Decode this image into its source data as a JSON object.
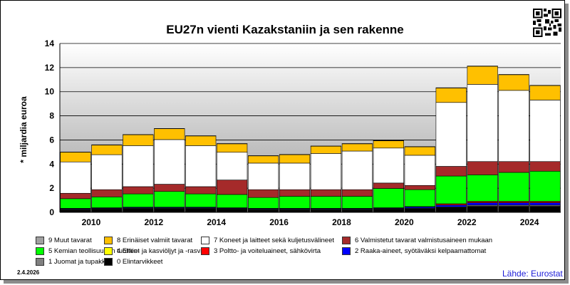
{
  "header": {
    "title": "EU27n vienti Kazakstaniin ja sen rakenne"
  },
  "footer": {
    "date": "2.4.2026",
    "source": "Lähde: Eurostat"
  },
  "chart_data": {
    "type": "bar",
    "stacked": true,
    "title": "EU27n vienti Kazakstaniin ja sen rakenne",
    "ylabel": "* miljardia euroa",
    "xlabel": "",
    "ylim": [
      0,
      14
    ],
    "yticks": [
      0,
      2,
      4,
      6,
      8,
      10,
      12,
      14
    ],
    "xtick_labels": [
      "2010",
      "2012",
      "2014",
      "2016",
      "2018",
      "2020",
      "2022",
      "2024"
    ],
    "grid": true,
    "legend_position": "bottom",
    "categories": [
      "2010",
      "2011",
      "2012",
      "2013",
      "2014",
      "2015",
      "2016",
      "2017",
      "2018",
      "2019",
      "2020",
      "2021",
      "2022",
      "2023",
      "2024",
      "2025"
    ],
    "series": [
      {
        "name": "0 Elintarvikkeet",
        "color": "#000000",
        "values": [
          0.2,
          0.25,
          0.3,
          0.3,
          0.3,
          0.25,
          0.2,
          0.2,
          0.2,
          0.2,
          0.25,
          0.3,
          0.4,
          0.5,
          0.5,
          0.5
        ]
      },
      {
        "name": "1 Juomat ja tupakka",
        "color": "#808080",
        "values": [
          0.05,
          0.05,
          0.05,
          0.05,
          0.05,
          0.05,
          0.05,
          0.05,
          0.05,
          0.05,
          0.05,
          0.05,
          0.05,
          0.1,
          0.1,
          0.1
        ]
      },
      {
        "name": "2 Raaka-aineet, syötäväksi kelpaamattomat",
        "color": "#0000ff",
        "values": [
          0.05,
          0.05,
          0.05,
          0.05,
          0.05,
          0.05,
          0.05,
          0.05,
          0.05,
          0.05,
          0.05,
          0.1,
          0.15,
          0.2,
          0.2,
          0.2
        ]
      },
      {
        "name": "3 Poltto- ja voiteluaineet, sähkövirta",
        "color": "#ff0000",
        "values": [
          0.02,
          0.02,
          0.02,
          0.02,
          0.02,
          0.02,
          0.02,
          0.02,
          0.02,
          0.02,
          0.02,
          0.02,
          0.1,
          0.1,
          0.1,
          0.1
        ]
      },
      {
        "name": "4 Eläin- ja kasviöljyt ja -rasvat",
        "color": "#ffff00",
        "values": [
          0.01,
          0.01,
          0.01,
          0.01,
          0.01,
          0.01,
          0.01,
          0.01,
          0.01,
          0.01,
          0.01,
          0.01,
          0.01,
          0.01,
          0.01,
          0.01
        ]
      },
      {
        "name": "5 Kemian teollisuuden tuotteet",
        "color": "#00ff00",
        "values": [
          0.8,
          0.9,
          1.1,
          1.3,
          1.1,
          1.1,
          0.9,
          1.0,
          1.0,
          1.0,
          1.6,
          1.4,
          2.3,
          2.2,
          2.4,
          2.5
        ]
      },
      {
        "name": "6 Valmistetut tavarat valmistusaineen mukaan",
        "color": "#a52a2a",
        "values": [
          0.45,
          0.6,
          0.6,
          0.6,
          0.6,
          1.2,
          0.65,
          0.55,
          0.55,
          0.55,
          0.45,
          0.35,
          0.8,
          1.1,
          0.9,
          0.8
        ]
      },
      {
        "name": "7 Koneet ja laitteet sekä kuljetusvälineet",
        "color": "#ffffff",
        "values": [
          2.6,
          2.9,
          3.4,
          3.7,
          3.4,
          2.3,
          2.2,
          2.2,
          3.0,
          3.2,
          2.9,
          2.5,
          5.3,
          6.4,
          5.9,
          5.1
        ]
      },
      {
        "name": "8 Erinäiset valmiit tavarat",
        "color": "#ffc000",
        "values": [
          0.8,
          0.8,
          0.9,
          0.9,
          0.8,
          0.7,
          0.6,
          0.7,
          0.6,
          0.6,
          0.6,
          0.7,
          1.2,
          1.5,
          1.3,
          1.2
        ]
      },
      {
        "name": "9 Muut tavarat",
        "color": "#a0a0a0",
        "values": [
          0.02,
          0.02,
          0.02,
          0.02,
          0.02,
          0.02,
          0.02,
          0.02,
          0.02,
          0.02,
          0.02,
          0.02,
          0.02,
          0.02,
          0.02,
          0.02
        ]
      }
    ]
  }
}
